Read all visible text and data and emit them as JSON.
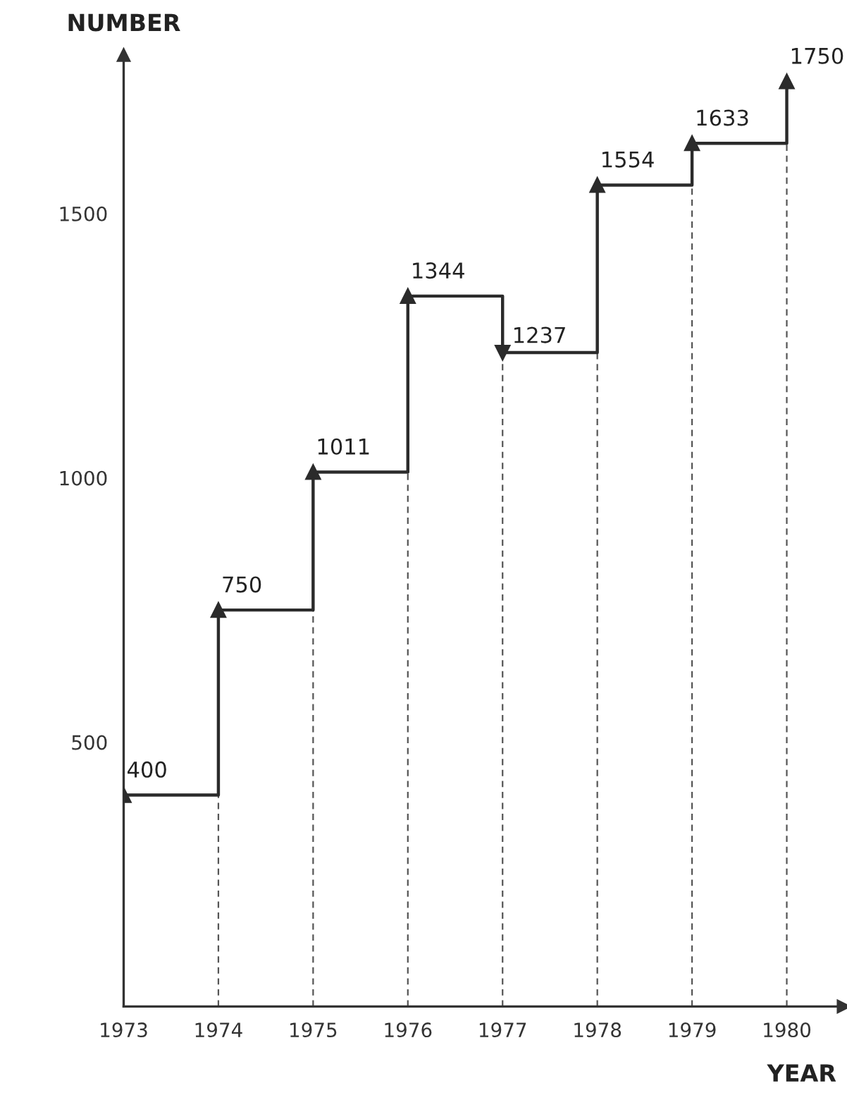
{
  "chart_data": {
    "type": "step",
    "xlabel": "YEAR",
    "ylabel": "NUMBER",
    "x": [
      1973,
      1974,
      1975,
      1976,
      1977,
      1978,
      1979,
      1980
    ],
    "values": [
      400,
      750,
      1011,
      1344,
      1237,
      1554,
      1633,
      1750
    ],
    "color": "#2b2b2b",
    "xlim": [
      1973,
      1980.6
    ],
    "xticks": [
      1973,
      1974,
      1975,
      1976,
      1977,
      1978,
      1979,
      1980
    ],
    "ylim": [
      0,
      1800
    ],
    "yticks": [
      500,
      1000,
      1500
    ],
    "grid": "x",
    "marker": "triangle",
    "line_style": "solid",
    "data_labels": true
  }
}
